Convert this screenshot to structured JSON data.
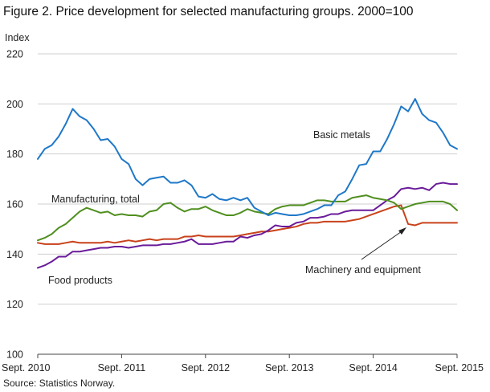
{
  "title": "Figure 2. Price development for selected manufacturing groups. 2000=100",
  "source": "Source: Statistics Norway.",
  "chart_data": {
    "type": "line",
    "ylabel": "Index",
    "ylim": [
      100,
      220
    ],
    "yticks": [
      100,
      120,
      140,
      160,
      180,
      200,
      220
    ],
    "x_start": "Sept. 2010",
    "x_end": "Sept. 2015",
    "frequency": "monthly",
    "xticks": [
      "Sept. 2010",
      "Sept. 2011",
      "Sept. 2012",
      "Sept. 2013",
      "Sept. 2014",
      "Sept. 2015"
    ],
    "grid": "horizontal",
    "series": [
      {
        "name": "Basic metals",
        "color": "#1f78c8",
        "values": [
          178,
          182,
          183.5,
          187,
          192,
          198,
          195,
          193.5,
          190,
          185.5,
          186,
          183,
          178,
          176,
          170,
          167.5,
          170,
          170.5,
          171,
          168.5,
          168.5,
          169.5,
          167.5,
          163,
          162.5,
          164,
          162,
          161.5,
          162.5,
          161.5,
          162.5,
          158.5,
          157,
          155.5,
          156.5,
          156,
          155.5,
          155.5,
          156,
          157,
          158,
          159.5,
          159.5,
          163.5,
          165,
          170,
          175.5,
          176,
          181,
          181,
          186,
          192,
          199,
          197,
          202,
          196,
          193.5,
          192.5,
          188.5,
          183.5,
          182
        ]
      },
      {
        "name": "Manufacturing, total",
        "color": "#4f8f1f",
        "values": [
          145.5,
          146.5,
          148,
          150.5,
          152,
          154.5,
          157,
          158.5,
          157.5,
          156.5,
          157,
          155.5,
          156,
          155.5,
          155.5,
          155,
          157,
          157.5,
          160,
          160.5,
          158.5,
          157,
          158,
          158,
          159,
          157.5,
          156.5,
          155.5,
          155.5,
          156.5,
          158,
          157,
          156.5,
          156,
          158,
          159,
          159.5,
          159.5,
          159.5,
          160.5,
          161.5,
          161.5,
          161,
          161,
          161,
          162.5,
          163,
          163.5,
          162.5,
          162,
          161.5,
          160.5,
          158,
          159,
          160,
          160.5,
          161,
          161,
          161,
          160,
          157.5
        ]
      },
      {
        "name": "Food products",
        "color": "#6a1b9a",
        "values": [
          134.5,
          135.5,
          137,
          139,
          139,
          141,
          141,
          141.5,
          142,
          142.5,
          142.5,
          143,
          143,
          142.5,
          143,
          143.5,
          143.5,
          143.5,
          144,
          144,
          144.5,
          145,
          146,
          144,
          144,
          144,
          144.5,
          145,
          145,
          147,
          146.5,
          147.5,
          148,
          149.5,
          151.5,
          151,
          151,
          152.5,
          153,
          154.5,
          154.5,
          155,
          156,
          156,
          157,
          157.5,
          157.5,
          157.5,
          157.5,
          159.5,
          161.5,
          163,
          166,
          166.5,
          166,
          166.5,
          165.5,
          168,
          168.5,
          168,
          168
        ]
      },
      {
        "name": "Machinery and equipment",
        "color": "#c8421a",
        "values": [
          144.5,
          144,
          144,
          144,
          144.5,
          145,
          144.5,
          144.5,
          144.5,
          144.5,
          145,
          144.5,
          145,
          145.5,
          145,
          145.5,
          146,
          145.5,
          146,
          146,
          146,
          147,
          147,
          147.5,
          147,
          147,
          147,
          147,
          147,
          147.5,
          148,
          148.5,
          149,
          149,
          149.5,
          150,
          150.5,
          151,
          152,
          152.5,
          152.5,
          153,
          153,
          153,
          153,
          153.5,
          154,
          155,
          156,
          157,
          158,
          159,
          159.5,
          152,
          151.5,
          152.5,
          152.5,
          152.5,
          152.5,
          152.5,
          152.5
        ]
      }
    ],
    "annotations": [
      {
        "series": "Basic metals",
        "text": "Basic  metals"
      },
      {
        "series": "Manufacturing, total",
        "text": "Manufacturing,  total"
      },
      {
        "series": "Food products",
        "text": "Food products"
      },
      {
        "series": "Machinery and equipment",
        "text": "Machinery  and equipment"
      }
    ]
  }
}
